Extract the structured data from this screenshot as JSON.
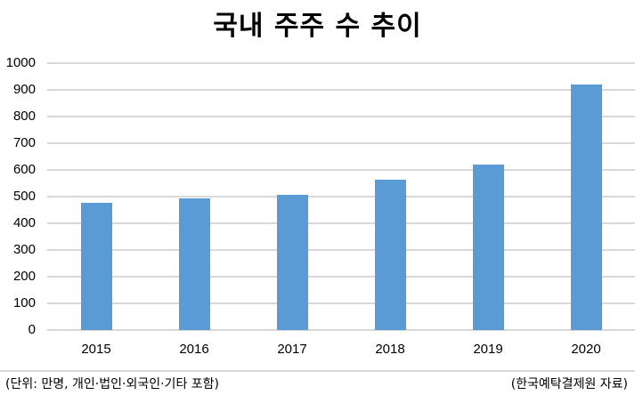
{
  "chart_data": {
    "type": "bar",
    "title": "국내 주주 수 추이",
    "categories": [
      "2015",
      "2016",
      "2017",
      "2018",
      "2019",
      "2020"
    ],
    "values": [
      477,
      494,
      506,
      563,
      619,
      919
    ],
    "xlabel": "",
    "ylabel": "",
    "ylim": [
      0,
      1000
    ],
    "yticks": [
      "0",
      "100",
      "200",
      "300",
      "400",
      "500",
      "600",
      "700",
      "800",
      "900",
      "1000"
    ],
    "grid": true,
    "legend": "none",
    "bar_color": "#5b9bd5",
    "unit_note": "(단위: 만명, 개인·법인·외국인·기타 포함)",
    "source_note": "(한국예탁결제원 자료)"
  }
}
